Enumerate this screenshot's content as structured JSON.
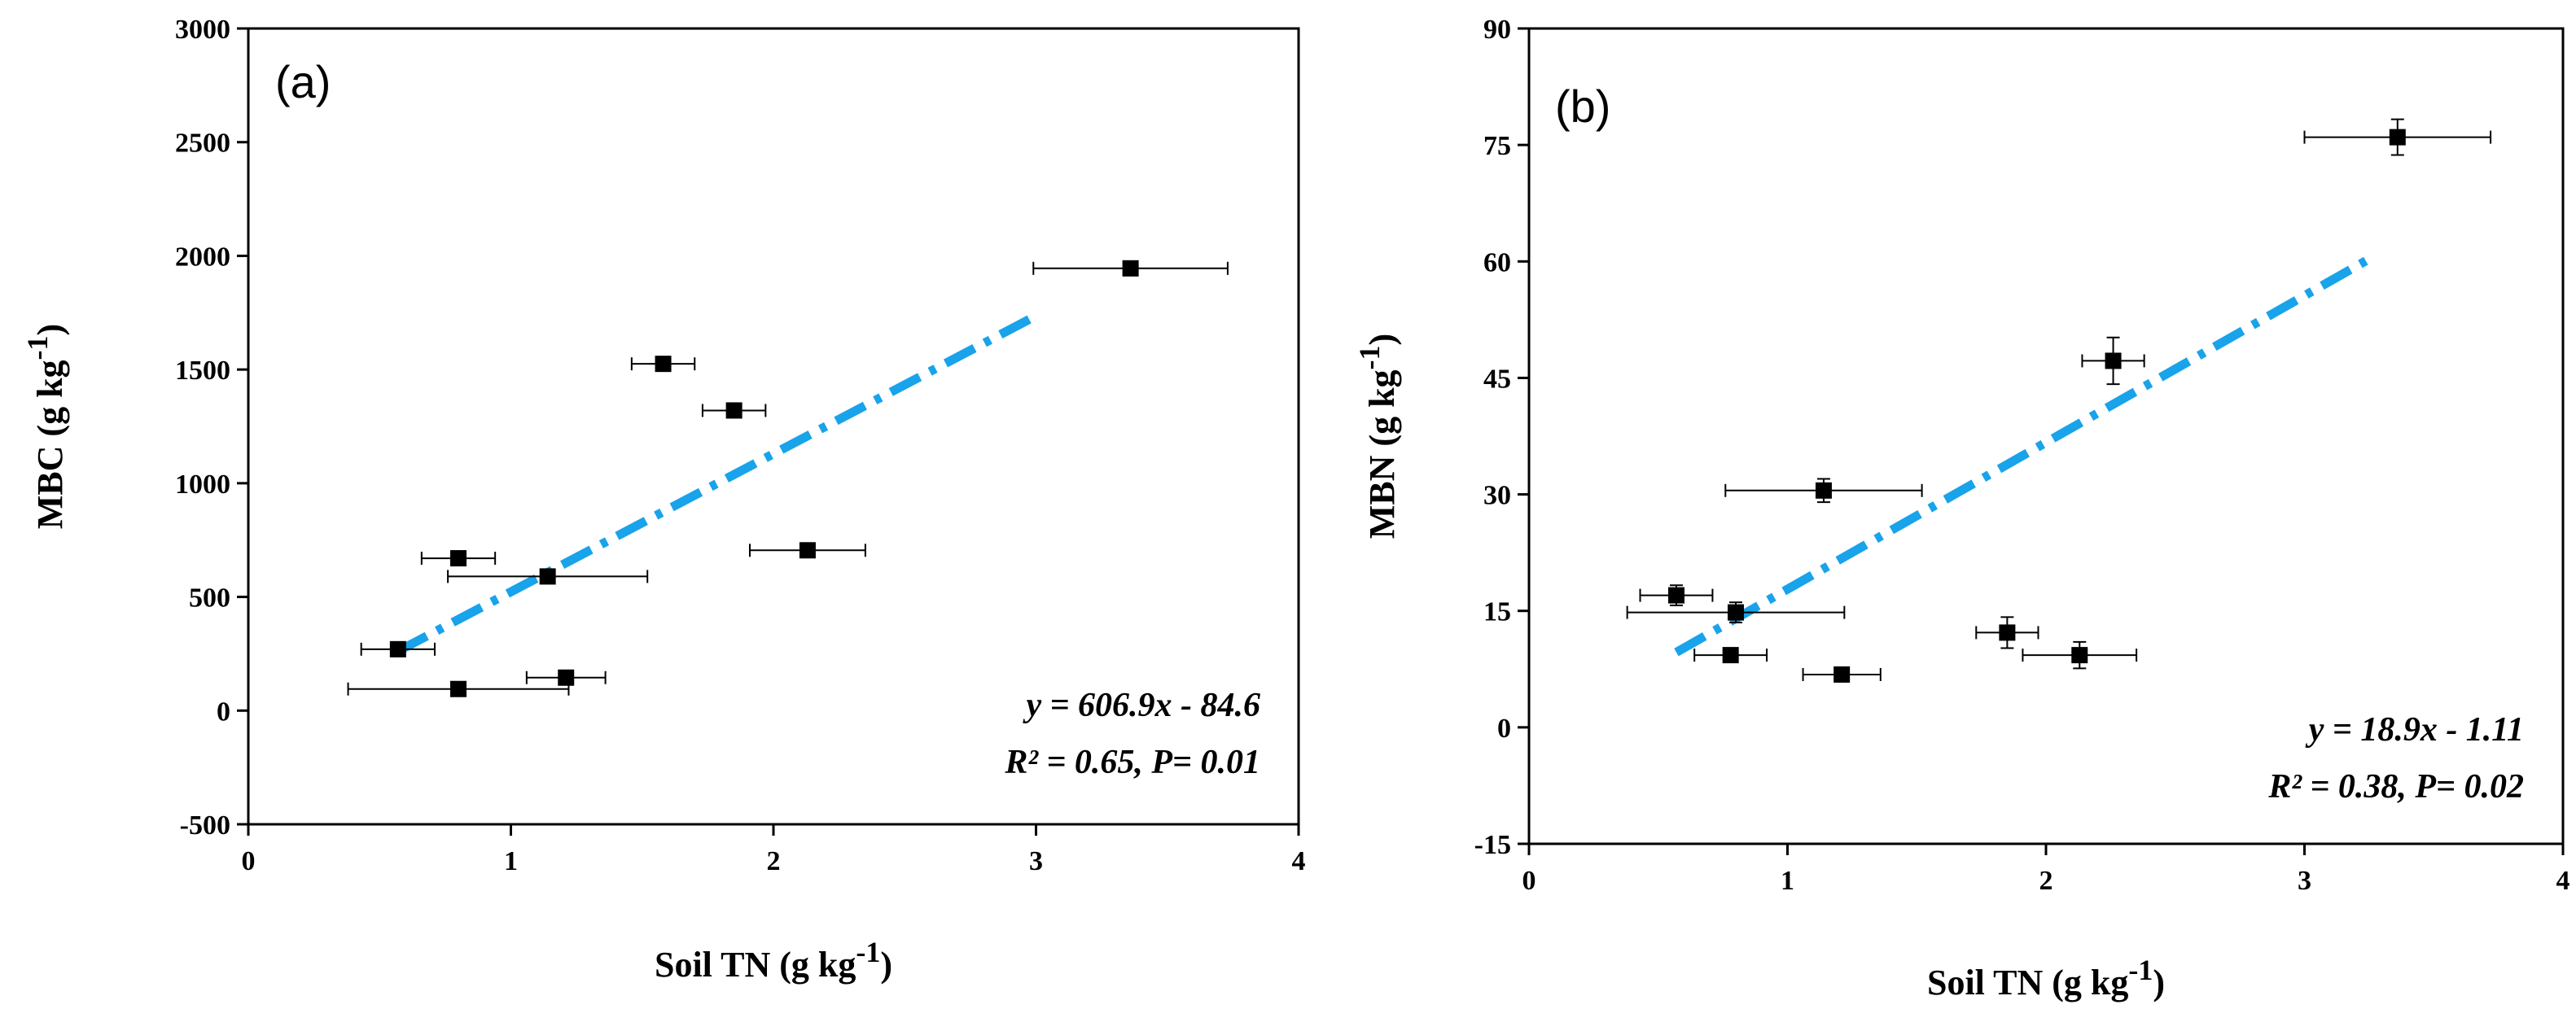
{
  "colors": {
    "fit_line": "#18a3ea",
    "marker": "#000000",
    "axis": "#000000"
  },
  "chart_data": [
    {
      "type": "scatter",
      "panel_label": "(a)",
      "xlabel": "Soil TN (g kg",
      "xlabel_sup": "-1",
      "xlabel_close": ")",
      "ylabel": "MBC (g kg",
      "ylabel_sup": "-1",
      "ylabel_close": ")",
      "xlim": [
        0,
        4
      ],
      "ylim": [
        -500,
        3000
      ],
      "xticks": [
        0,
        1,
        2,
        3,
        4
      ],
      "yticks": [
        -500,
        0,
        500,
        1000,
        1500,
        2000,
        2500,
        3000
      ],
      "series": [
        {
          "name": "MBC",
          "points": [
            {
              "x": 0.57,
              "y": 270,
              "xerr": 0.14,
              "yerr": 0
            },
            {
              "x": 0.8,
              "y": 95,
              "xerr": 0.42,
              "yerr": 0
            },
            {
              "x": 0.8,
              "y": 670,
              "xerr": 0.14,
              "yerr": 0
            },
            {
              "x": 1.14,
              "y": 590,
              "xerr": 0.38,
              "yerr": 0
            },
            {
              "x": 1.21,
              "y": 145,
              "xerr": 0.15,
              "yerr": 0
            },
            {
              "x": 1.58,
              "y": 1525,
              "xerr": 0.12,
              "yerr": 0
            },
            {
              "x": 1.85,
              "y": 1320,
              "xerr": 0.12,
              "yerr": 0
            },
            {
              "x": 2.13,
              "y": 705,
              "xerr": 0.22,
              "yerr": 0
            },
            {
              "x": 3.36,
              "y": 1945,
              "xerr": 0.37,
              "yerr": 0
            }
          ]
        }
      ],
      "fit": {
        "slope": 606.9,
        "intercept": -84.6,
        "x_range": [
          0.57,
          3.0
        ]
      },
      "annotation": {
        "equation": "y = 606.9x - 84.6",
        "stats": "R² = 0.65, P= 0.01"
      }
    },
    {
      "type": "scatter",
      "panel_label": "(b)",
      "xlabel": "Soil TN (g kg",
      "xlabel_sup": "-1",
      "xlabel_close": ")",
      "ylabel": "MBN (g kg",
      "ylabel_sup": "-1",
      "ylabel_close": ")",
      "xlim": [
        0,
        4
      ],
      "ylim": [
        -15,
        90
      ],
      "xticks": [
        0,
        1,
        2,
        3,
        4
      ],
      "yticks": [
        -15,
        0,
        15,
        30,
        45,
        60,
        75,
        90
      ],
      "series": [
        {
          "name": "MBN",
          "points": [
            {
              "x": 0.57,
              "y": 17,
              "xerr": 0.14,
              "yerr": 1.3
            },
            {
              "x": 0.8,
              "y": 14.8,
              "xerr": 0.42,
              "yerr": 1.3
            },
            {
              "x": 0.78,
              "y": 9.3,
              "xerr": 0.14,
              "yerr": 0.8
            },
            {
              "x": 1.14,
              "y": 30.5,
              "xerr": 0.38,
              "yerr": 1.5
            },
            {
              "x": 1.21,
              "y": 6.8,
              "xerr": 0.15,
              "yerr": 0.8
            },
            {
              "x": 1.85,
              "y": 12.2,
              "xerr": 0.12,
              "yerr": 2.0
            },
            {
              "x": 2.13,
              "y": 9.3,
              "xerr": 0.22,
              "yerr": 1.7
            },
            {
              "x": 2.26,
              "y": 47.2,
              "xerr": 0.12,
              "yerr": 3.0
            },
            {
              "x": 3.36,
              "y": 76,
              "xerr": 0.36,
              "yerr": 2.3
            }
          ]
        }
      ],
      "fit": {
        "slope": 18.9,
        "intercept": -1.11,
        "x_range": [
          0.57,
          3.27
        ]
      },
      "annotation": {
        "equation": "y = 18.9x - 1.11",
        "stats": "R² = 0.38, P= 0.02"
      }
    }
  ]
}
